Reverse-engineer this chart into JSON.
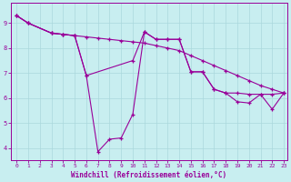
{
  "xlabel": "Windchill (Refroidissement éolien,°C)",
  "bg_color": "#c8eef0",
  "line_color": "#990099",
  "xlim": [
    -0.5,
    23.3
  ],
  "ylim": [
    3.5,
    9.8
  ],
  "yticks": [
    4,
    5,
    6,
    7,
    8,
    9
  ],
  "xticks": [
    0,
    1,
    2,
    3,
    4,
    5,
    6,
    7,
    8,
    9,
    10,
    11,
    12,
    13,
    14,
    15,
    16,
    17,
    18,
    19,
    20,
    21,
    22,
    23
  ],
  "series1_x": [
    0,
    1,
    3,
    4,
    5,
    6,
    7,
    8,
    9,
    10,
    11,
    12,
    13,
    14,
    15,
    16,
    17,
    18,
    19,
    20,
    21,
    22,
    23
  ],
  "series1_y": [
    9.3,
    9.0,
    8.6,
    8.55,
    8.5,
    8.45,
    8.4,
    8.35,
    8.3,
    8.25,
    8.2,
    8.1,
    8.0,
    7.9,
    7.7,
    7.5,
    7.3,
    7.1,
    6.9,
    6.7,
    6.5,
    6.35,
    6.2
  ],
  "series2_x": [
    0,
    1,
    3,
    4,
    5,
    6,
    10,
    11,
    12,
    13,
    14,
    15,
    16,
    17,
    18,
    19,
    20,
    21,
    22,
    23
  ],
  "series2_y": [
    9.3,
    9.0,
    8.6,
    8.55,
    8.5,
    6.9,
    7.5,
    8.65,
    8.35,
    8.35,
    8.35,
    7.05,
    7.05,
    6.35,
    6.2,
    6.2,
    6.15,
    6.15,
    6.15,
    6.2
  ],
  "series3_x": [
    0,
    1,
    3,
    4,
    5,
    6,
    7,
    8,
    9,
    10,
    11,
    12,
    13,
    14,
    15,
    16,
    17,
    18,
    19,
    20,
    21,
    22,
    23
  ],
  "series3_y": [
    9.3,
    9.0,
    8.6,
    8.55,
    8.5,
    6.9,
    3.85,
    4.35,
    4.4,
    5.35,
    8.65,
    8.35,
    8.35,
    8.35,
    7.05,
    7.05,
    6.35,
    6.2,
    5.85,
    5.8,
    6.15,
    5.55,
    6.2
  ],
  "grid_color": "#aad8dc",
  "spine_color": "#990099",
  "tick_color": "#990099",
  "label_color": "#990099"
}
